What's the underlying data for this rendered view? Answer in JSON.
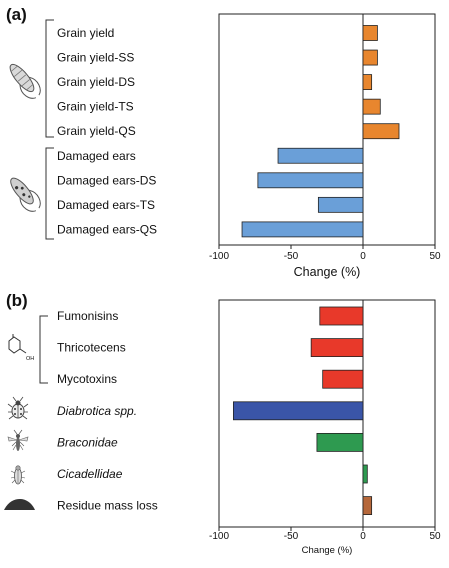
{
  "chart_data": [
    {
      "panel_label": "(a)",
      "type": "bar",
      "orientation": "horizontal",
      "categories": [
        "Grain yield",
        "Grain yield-SS",
        "Grain yield-DS",
        "Grain yield-TS",
        "Grain yield-QS",
        "Damaged ears",
        "Damaged ears-DS",
        "Damaged ears-TS",
        "Damaged ears-QS"
      ],
      "italic": [
        false,
        false,
        false,
        false,
        false,
        false,
        false,
        false,
        false
      ],
      "values": [
        10,
        10,
        6,
        12,
        25,
        -59,
        -73,
        -31,
        -84
      ],
      "colors": [
        "#e8862e",
        "#e8862e",
        "#e8862e",
        "#e8862e",
        "#e8862e",
        "#6a9fd8",
        "#6a9fd8",
        "#6a9fd8",
        "#6a9fd8"
      ],
      "xlim": [
        -100,
        50
      ],
      "xticks": [
        "-100",
        "-50",
        "0",
        "50"
      ],
      "xlabel": "Change (%)",
      "icons": [
        "corn-ear-icon",
        "damaged-corn-ear-icon"
      ]
    },
    {
      "panel_label": "(b)",
      "type": "bar",
      "orientation": "horizontal",
      "categories": [
        "Fumonisins",
        "Thricotecens",
        "Mycotoxins",
        "Diabrotica spp.",
        "Braconidae",
        "Cicadellidae",
        "Residue mass loss"
      ],
      "italic": [
        false,
        false,
        false,
        true,
        true,
        true,
        false
      ],
      "values": [
        -30,
        -36,
        -28,
        -90,
        -32,
        3,
        6
      ],
      "colors": [
        "#e8392a",
        "#e8392a",
        "#e8392a",
        "#3a55a8",
        "#2e9a50",
        "#2e9a50",
        "#b5673a"
      ],
      "xlim": [
        -100,
        50
      ],
      "xticks": [
        "-100",
        "-50",
        "0",
        "50"
      ],
      "xlabel": "Change (%)",
      "icons": [
        "mycotoxin-molecule-icon",
        "beetle-icon",
        "wasp-icon",
        "leafhopper-icon",
        "residue-pile-icon"
      ]
    }
  ],
  "molecule_text": "OH"
}
